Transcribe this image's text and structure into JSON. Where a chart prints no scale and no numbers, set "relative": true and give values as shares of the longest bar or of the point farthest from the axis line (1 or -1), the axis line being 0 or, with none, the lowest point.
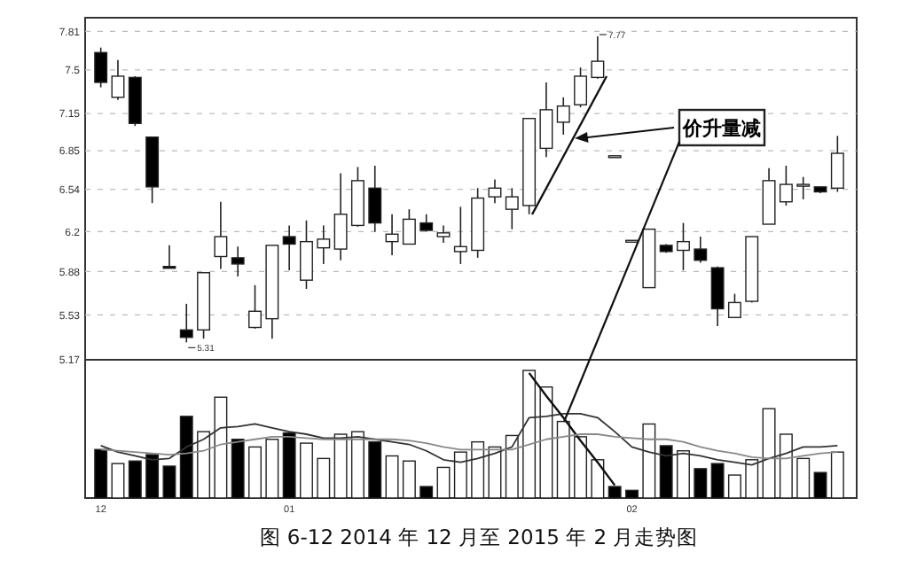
{
  "chart_data": [
    {
      "type": "candlestick",
      "categories": [
        null,
        null,
        null,
        null,
        null,
        null,
        null,
        null,
        null,
        null,
        null,
        null,
        null,
        null,
        null,
        null,
        null,
        null,
        null,
        null,
        null,
        null,
        null,
        null,
        null,
        null,
        null,
        null,
        null,
        null,
        null,
        null,
        null,
        null,
        null,
        null,
        null,
        null,
        null,
        null,
        null,
        null,
        null,
        null
      ],
      "ohlc": [
        [
          7.64,
          7.68,
          7.36,
          7.4
        ],
        [
          7.28,
          7.58,
          7.26,
          7.45
        ],
        [
          7.44,
          7.45,
          7.05,
          7.07
        ],
        [
          6.96,
          6.96,
          6.43,
          6.56
        ],
        [
          5.92,
          6.09,
          5.91,
          5.91
        ],
        [
          5.41,
          5.62,
          5.31,
          5.35
        ],
        [
          5.41,
          5.87,
          5.34,
          5.87
        ],
        [
          6.0,
          6.44,
          5.9,
          6.16
        ],
        [
          5.99,
          6.08,
          5.84,
          5.94
        ],
        [
          5.43,
          5.77,
          5.42,
          5.56
        ],
        [
          5.5,
          6.09,
          5.34,
          6.09
        ],
        [
          6.16,
          6.25,
          5.89,
          6.1
        ],
        [
          5.81,
          6.29,
          5.74,
          6.12
        ],
        [
          6.07,
          6.25,
          5.94,
          6.14
        ],
        [
          6.06,
          6.67,
          5.97,
          6.34
        ],
        [
          6.25,
          6.72,
          6.24,
          6.61
        ],
        [
          6.55,
          6.73,
          6.2,
          6.27
        ],
        [
          6.12,
          6.34,
          6.01,
          6.18
        ],
        [
          6.1,
          6.38,
          6.1,
          6.3
        ],
        [
          6.27,
          6.34,
          6.2,
          6.21
        ],
        [
          6.16,
          6.25,
          6.11,
          6.19
        ],
        [
          6.04,
          6.4,
          5.94,
          6.08
        ],
        [
          6.05,
          6.55,
          5.99,
          6.47
        ],
        [
          6.48,
          6.62,
          6.43,
          6.55
        ],
        [
          6.38,
          6.55,
          6.22,
          6.48
        ],
        [
          6.41,
          7.11,
          6.34,
          7.11
        ],
        [
          6.87,
          7.4,
          6.8,
          7.18
        ],
        [
          7.08,
          7.28,
          6.98,
          7.21
        ],
        [
          7.22,
          7.52,
          7.2,
          7.45
        ],
        [
          7.44,
          7.77,
          7.43,
          7.57
        ],
        [
          6.81,
          6.81,
          6.81,
          6.81
        ],
        [
          6.13,
          6.13,
          6.13,
          6.13
        ],
        [
          5.75,
          6.22,
          5.75,
          6.22
        ],
        [
          6.09,
          6.1,
          6.03,
          6.04
        ],
        [
          6.05,
          6.27,
          5.89,
          6.12
        ],
        [
          6.06,
          6.16,
          5.95,
          5.97
        ],
        [
          5.91,
          5.92,
          5.44,
          5.58
        ],
        [
          5.51,
          5.7,
          5.51,
          5.63
        ],
        [
          5.64,
          6.16,
          5.63,
          6.16
        ],
        [
          6.26,
          6.71,
          6.26,
          6.61
        ],
        [
          6.44,
          6.73,
          6.41,
          6.58
        ],
        [
          6.57,
          6.64,
          6.46,
          6.58
        ],
        [
          6.56,
          6.56,
          6.51,
          6.52
        ],
        [
          6.55,
          6.97,
          6.52,
          6.83
        ]
      ],
      "ylim": [
        5.17,
        7.92
      ],
      "yticks": [
        5.17,
        5.53,
        5.88,
        6.2,
        6.54,
        6.85,
        7.15,
        7.5,
        7.81
      ],
      "grid": "y",
      "tick_labels": "y",
      "annotations": [
        "价升量减",
        "7.77",
        "5.31"
      ]
    },
    {
      "type": "bar",
      "relative": true,
      "tick_labels": "x",
      "categories": [
        "12",
        null,
        null,
        null,
        null,
        null,
        null,
        null,
        null,
        null,
        null,
        "01",
        null,
        null,
        null,
        null,
        null,
        null,
        null,
        null,
        null,
        null,
        null,
        null,
        null,
        null,
        null,
        null,
        null,
        null,
        null,
        "02",
        null,
        null,
        null,
        null,
        null,
        null,
        null,
        null,
        null,
        null,
        null,
        null
      ],
      "series": [
        {
          "type": "bar",
          "values": [
            0.38,
            0.27,
            0.29,
            0.34,
            0.25,
            0.64,
            0.52,
            0.79,
            0.46,
            0.4,
            0.46,
            0.51,
            0.43,
            0.31,
            0.5,
            0.52,
            0.44,
            0.33,
            0.29,
            0.09,
            0.24,
            0.36,
            0.44,
            0.4,
            0.49,
            1,
            0.87,
            0.6,
            0.48,
            0.3,
            0.09,
            0.06,
            0.58,
            0.41,
            0.37,
            0.23,
            0.27,
            0.18,
            0.3,
            0.7,
            0.5,
            0.31,
            0.2,
            0.36
          ],
          "colors": [
            "#000000",
            "#ffffff",
            "#000000",
            "#000000",
            "#000000",
            "#000000",
            "#ffffff",
            "#ffffff",
            "#000000",
            "#ffffff",
            "#ffffff",
            "#000000",
            "#ffffff",
            "#ffffff",
            "#ffffff",
            "#ffffff",
            "#000000",
            "#ffffff",
            "#ffffff",
            "#000000",
            "#ffffff",
            "#ffffff",
            "#ffffff",
            "#ffffff",
            "#ffffff",
            "#ffffff",
            "#ffffff",
            "#ffffff",
            "#ffffff",
            "#ffffff",
            "#000000",
            "#000000",
            "#ffffff",
            "#000000",
            "#ffffff",
            "#000000",
            "#000000",
            "#ffffff",
            "#ffffff",
            "#ffffff",
            "#ffffff",
            "#ffffff",
            "#000000",
            "#ffffff"
          ]
        },
        {
          "type": "line",
          "color": "#333333",
          "values": [
            0.41,
            0.36,
            0.33,
            0.3,
            0.31,
            0.4,
            0.46,
            0.55,
            0.56,
            0.58,
            0.55,
            0.52,
            0.5,
            0.47,
            0.47,
            0.48,
            0.46,
            0.44,
            0.42,
            0.37,
            0.3,
            0.28,
            0.31,
            0.35,
            0.4,
            0.63,
            0.64,
            0.66,
            0.66,
            0.63,
            0.52,
            0.4,
            0.36,
            0.33,
            0.35,
            0.33,
            0.3,
            0.28,
            0.26,
            0.31,
            0.35,
            0.4,
            0.4,
            0.41
          ]
        },
        {
          "type": "line",
          "color": "#111111",
          "values": [
            null,
            null,
            null,
            null,
            null,
            null,
            null,
            null,
            null,
            null,
            null,
            null,
            null,
            null,
            null,
            null,
            null,
            null,
            null,
            null,
            null,
            null,
            null,
            null,
            null,
            0.98,
            0.8,
            0.63,
            0.45,
            0.28,
            0.1,
            null,
            null,
            null,
            null,
            null,
            null,
            null,
            null,
            null,
            null,
            null,
            null,
            null
          ]
        },
        {
          "type": "line",
          "color": "#888888",
          "values": [
            0.38,
            0.37,
            0.36,
            0.35,
            0.34,
            0.35,
            0.37,
            0.42,
            0.44,
            0.46,
            0.48,
            0.48,
            0.47,
            0.46,
            0.46,
            0.46,
            0.46,
            0.46,
            0.45,
            0.43,
            0.4,
            0.38,
            0.38,
            0.38,
            0.38,
            0.42,
            0.46,
            0.48,
            0.5,
            0.5,
            0.48,
            0.47,
            0.46,
            0.46,
            0.44,
            0.4,
            0.37,
            0.35,
            0.32,
            0.31,
            0.31,
            0.33,
            0.35,
            0.36
          ]
        }
      ],
      "annotations": [
        "图 6-12 2014 年 12 月至 2015 年 2 月走势图"
      ]
    }
  ]
}
